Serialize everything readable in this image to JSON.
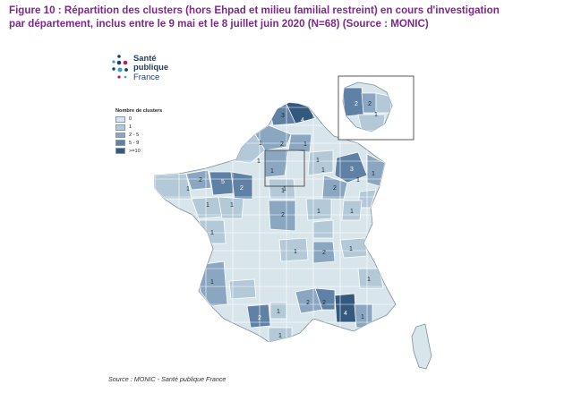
{
  "figure": {
    "title_line1": "Figure 10 : Répartition des clusters (hors Ehpad et milieu familial restreint) en cours d'investigation",
    "title_line2": "par département, inclus entre le 9 mai et le 8 juillet juin 2020 (N=68) (Source : MONIC)",
    "source": "Source : MONIC - Santé publique France"
  },
  "logo": {
    "line1": "Santé",
    "line2": "publique",
    "line3": "France"
  },
  "legend": {
    "title": "Nombre de clusters",
    "items": [
      {
        "label": "0",
        "color": "#d8e6ec"
      },
      {
        "label": "1",
        "color": "#b3c9d7"
      },
      {
        "label": "2 - 5",
        "color": "#8aa6c1"
      },
      {
        "label": "5 - 9",
        "color": "#5f81a6"
      },
      {
        "label": ">=10",
        "color": "#34597f"
      }
    ]
  },
  "map_labels": {
    "nord": "3",
    "pas_de_calais": "4",
    "somme": "1",
    "oise": "2",
    "aisne": "1",
    "seine_maritime": "1",
    "idf_west": "1",
    "idf_south": "1",
    "marne": "1",
    "finistere": "1",
    "cotes_armor": "2",
    "ille_et_vilaine": "5",
    "mayenne": "2",
    "loire_atlantique": "1",
    "maine_et_loire": "1",
    "meurthe_et_moselle": "1",
    "moselle": "3",
    "bas_rhin": "1",
    "haut_rhin": "1",
    "vosges": "2",
    "loiret": "1",
    "cher": "2",
    "cote_d_or": "1",
    "doubs": "1",
    "vendee": "1",
    "gironde": "1",
    "puy_de_dome": "1",
    "rhone": "2",
    "haute_savoie": "1",
    "haute_garonne": "2",
    "tarn": "1",
    "pyrenees_orientales": "1",
    "herault": "2",
    "gard": "2",
    "bouches_du_rhone": "4",
    "var": "1",
    "alpes_maritimes": "1",
    "inset_paris_west": "2",
    "inset_paris": "2",
    "inset_paris_east": "1"
  }
}
